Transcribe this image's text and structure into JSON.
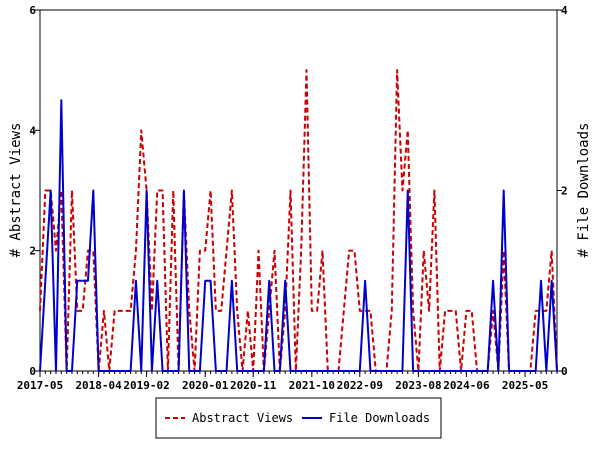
{
  "chart_data": {
    "type": "line",
    "ylabel": "# Abstract Views",
    "y2label": "# File Downloads",
    "ylim": [
      0,
      6
    ],
    "y2lim": [
      0,
      4
    ],
    "yticks": [
      "0",
      "2",
      "4",
      "6"
    ],
    "y2ticks": [
      "0",
      "2",
      "4"
    ],
    "xlim": [
      0,
      97
    ],
    "xtick_positions": [
      0,
      11,
      20,
      31,
      40,
      51,
      60,
      71,
      80,
      91
    ],
    "xtick_labels": [
      "2017-05",
      "2018-04",
      "2019-02",
      "2020-01",
      "2020-11",
      "2021-10",
      "2022-09",
      "2023-08",
      "2024-06",
      "2025-05"
    ],
    "legend_position": "bottom-center",
    "series": [
      {
        "name": "Abstract Views",
        "color": "#cc0000",
        "style": "dashed",
        "axis": "left",
        "values": [
          1,
          3,
          3,
          2,
          3,
          0,
          3,
          1,
          1,
          2,
          2,
          0,
          1,
          0,
          1,
          1,
          1,
          1,
          2,
          4,
          3,
          1,
          3,
          3,
          0,
          3,
          0,
          3,
          1,
          0,
          2,
          2,
          3,
          1,
          1,
          2,
          3,
          1,
          0,
          1,
          0,
          2,
          0,
          1,
          2,
          0,
          1,
          3,
          0,
          2,
          5,
          1,
          1,
          2,
          0,
          0,
          0,
          1,
          2,
          2,
          1,
          1,
          1,
          0,
          0,
          0,
          1,
          5,
          3,
          4,
          1,
          0,
          2,
          1,
          3,
          0,
          1,
          1,
          1,
          0,
          1,
          1,
          0,
          0,
          0,
          1,
          0,
          2,
          0,
          0,
          0,
          0,
          0,
          1,
          1,
          1,
          2,
          0
        ]
      },
      {
        "name": "File Downloads",
        "color": "#0000cc",
        "style": "solid",
        "axis": "right",
        "values": [
          0,
          1,
          2,
          0,
          3,
          0,
          0,
          1,
          1,
          1,
          2,
          0,
          0,
          0,
          0,
          0,
          0,
          0,
          1,
          0,
          2,
          0,
          1,
          0,
          0,
          0,
          0,
          2,
          0,
          0,
          0,
          1,
          1,
          0,
          0,
          0,
          1,
          0,
          0,
          0,
          0,
          0,
          0,
          1,
          0,
          0,
          1,
          0,
          0,
          0,
          0,
          0,
          0,
          0,
          0,
          0,
          0,
          0,
          0,
          0,
          0,
          1,
          0,
          0,
          0,
          0,
          0,
          0,
          0,
          2,
          0,
          0,
          0,
          0,
          0,
          0,
          0,
          0,
          0,
          0,
          0,
          0,
          0,
          0,
          0,
          1,
          0,
          2,
          0,
          0,
          0,
          0,
          0,
          0,
          1,
          0,
          1,
          0
        ]
      }
    ]
  }
}
